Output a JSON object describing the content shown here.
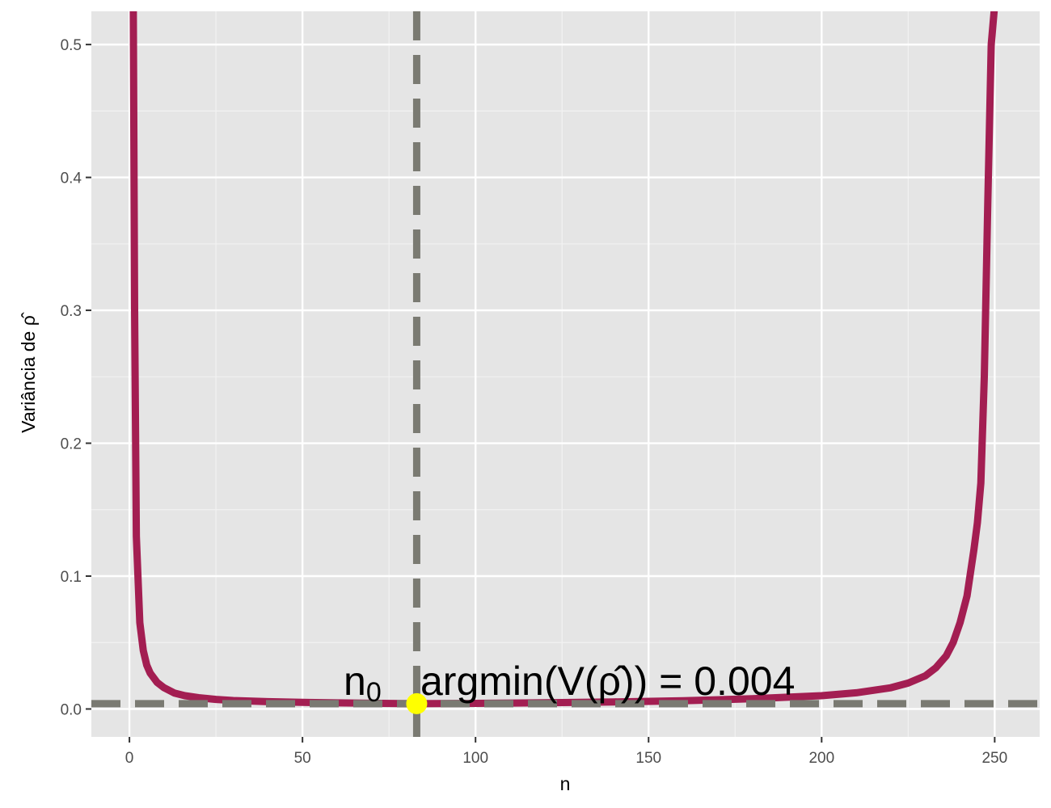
{
  "chart_data": {
    "type": "line",
    "title": "",
    "xlabel": "n",
    "ylabel": "Variância de ρ̂",
    "xlim": [
      -11,
      263
    ],
    "ylim": [
      -0.021,
      0.525
    ],
    "x_ticks": [
      0,
      50,
      100,
      150,
      200,
      250
    ],
    "y_ticks": [
      0.0,
      0.1,
      0.2,
      0.3,
      0.4,
      0.5
    ],
    "x_tick_labels": [
      "0",
      "50",
      "100",
      "150",
      "200",
      "250"
    ],
    "y_tick_labels": [
      "0.0",
      "0.1",
      "0.2",
      "0.3",
      "0.4",
      "0.5"
    ],
    "grid": true,
    "background": "#e5e5e5",
    "series": [
      {
        "color": "#a31e52",
        "x": [
          1,
          1.5,
          2,
          3,
          4,
          5,
          6,
          8,
          10,
          13,
          16,
          20,
          25,
          30,
          40,
          50,
          60,
          70,
          83,
          100,
          120,
          140,
          160,
          180,
          200,
          210,
          220,
          225,
          230,
          233,
          236,
          238,
          240,
          242,
          244,
          245,
          246,
          247,
          248,
          249,
          250,
          252
        ],
        "y": [
          0.6,
          0.3,
          0.13,
          0.065,
          0.044,
          0.033,
          0.027,
          0.02,
          0.016,
          0.012,
          0.01,
          0.0085,
          0.0072,
          0.0064,
          0.0055,
          0.005,
          0.0046,
          0.0043,
          0.004,
          0.0042,
          0.0047,
          0.0053,
          0.0062,
          0.0077,
          0.01,
          0.0122,
          0.016,
          0.0195,
          0.025,
          0.031,
          0.04,
          0.05,
          0.065,
          0.085,
          0.12,
          0.14,
          0.17,
          0.25,
          0.38,
          0.5,
          0.53,
          0.6
        ]
      }
    ],
    "vline": {
      "x": 83,
      "color": "#7a7a72"
    },
    "hline": {
      "y": 0.004,
      "color": "#7a7a72"
    },
    "min_point": {
      "x": 83,
      "y": 0.004,
      "color": "#ffff00"
    },
    "annotation": {
      "label_main": "n",
      "label_sub": "0",
      "label_lhs": "argmin(V(ρ̂))",
      "label_eq": "=",
      "label_value": "0.004"
    }
  }
}
